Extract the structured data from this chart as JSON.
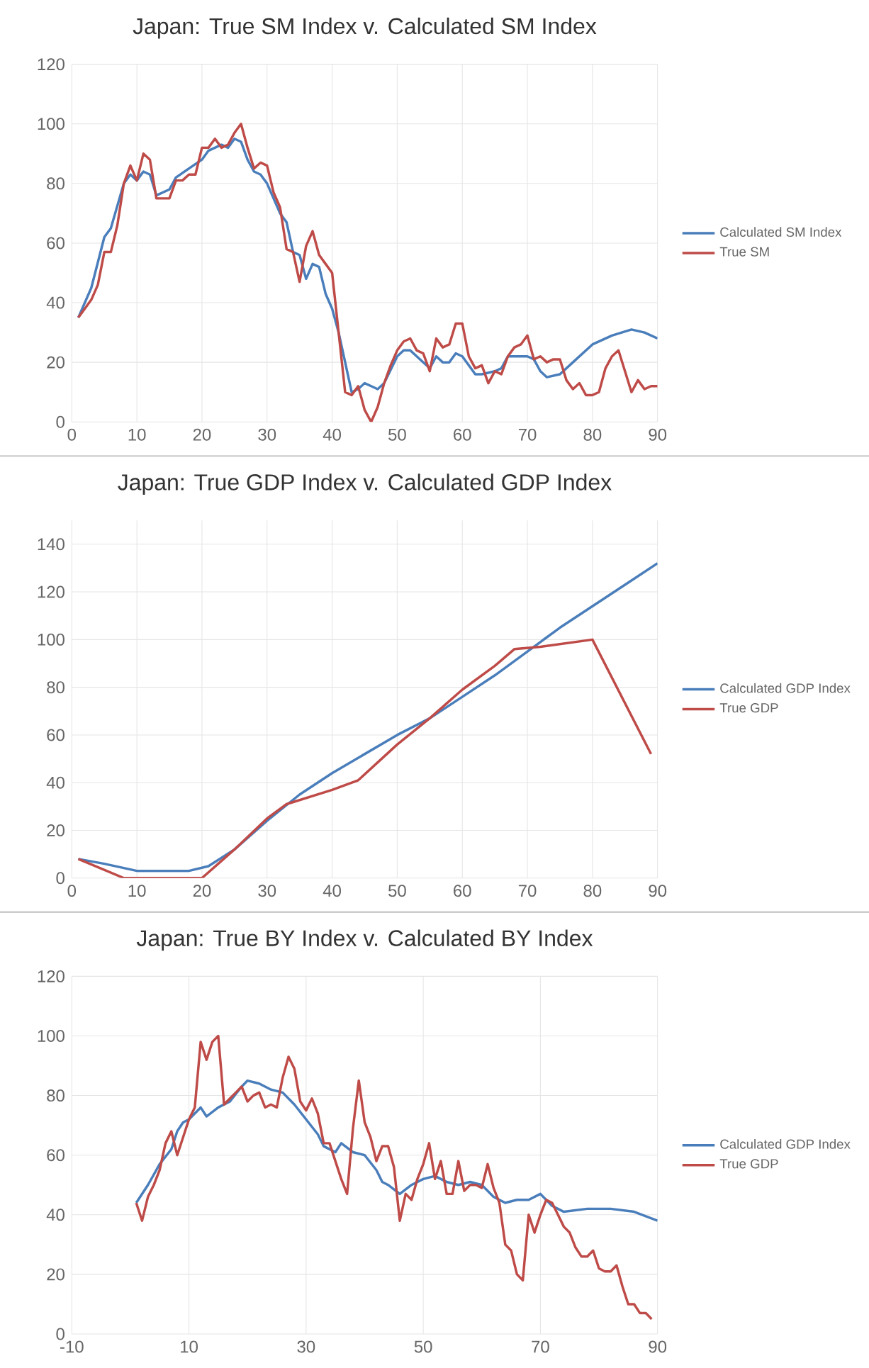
{
  "chart_data": [
    {
      "type": "line",
      "title": "Japan: True SM Index v. Calculated SM Index",
      "xlim": [
        0,
        90
      ],
      "xticks": [
        0,
        10,
        20,
        30,
        40,
        50,
        60,
        70,
        80,
        90
      ],
      "ylim": [
        0,
        120
      ],
      "yticks": [
        0,
        20,
        40,
        60,
        80,
        100,
        120
      ],
      "grid": true,
      "legend": "right",
      "marker": "none",
      "line_style": "solid",
      "series": [
        {
          "name": "Calculated SM Index",
          "color": "#4a7ebb",
          "x": [
            1,
            3,
            5,
            6,
            8,
            9,
            10,
            11,
            12,
            13,
            15,
            16,
            18,
            20,
            21,
            23,
            24,
            25,
            26,
            27,
            28,
            29,
            30,
            32,
            33,
            34,
            35,
            36,
            37,
            38,
            39,
            40,
            41,
            42,
            43,
            44,
            45,
            46,
            47,
            48,
            50,
            51,
            52,
            53,
            55,
            56,
            57,
            58,
            59,
            60,
            62,
            63,
            65,
            66,
            67,
            68,
            70,
            71,
            72,
            73,
            75,
            77,
            80,
            83,
            86,
            88,
            90
          ],
          "values": [
            35,
            45,
            62,
            65,
            80,
            83,
            81,
            84,
            83,
            76,
            78,
            82,
            85,
            88,
            91,
            93,
            92,
            95,
            94,
            88,
            84,
            83,
            80,
            70,
            67,
            57,
            56,
            48,
            53,
            52,
            43,
            38,
            30,
            20,
            10,
            11,
            13,
            12,
            11,
            13,
            22,
            24,
            24,
            22,
            18,
            22,
            20,
            20,
            23,
            22,
            16,
            16,
            17,
            18,
            22,
            22,
            22,
            21,
            17,
            15,
            16,
            20,
            26,
            29,
            31,
            30,
            28
          ]
        },
        {
          "name": "True SM",
          "color": "#be4b48",
          "x": [
            1,
            2,
            3,
            4,
            5,
            6,
            7,
            8,
            9,
            10,
            11,
            12,
            13,
            14,
            15,
            16,
            17,
            18,
            19,
            20,
            21,
            22,
            23,
            24,
            25,
            26,
            27,
            28,
            29,
            30,
            31,
            32,
            33,
            34,
            35,
            36,
            37,
            38,
            39,
            40,
            41,
            42,
            43,
            44,
            45,
            46,
            47,
            48,
            49,
            50,
            51,
            52,
            53,
            54,
            55,
            56,
            57,
            58,
            59,
            60,
            61,
            62,
            63,
            64,
            65,
            66,
            67,
            68,
            69,
            70,
            71,
            72,
            73,
            74,
            75,
            76,
            77,
            78,
            79,
            80,
            81,
            82,
            83,
            84,
            85,
            86,
            87,
            88,
            89,
            90
          ],
          "values": [
            35,
            38,
            41,
            46,
            57,
            57,
            66,
            80,
            86,
            81,
            90,
            88,
            75,
            75,
            75,
            81,
            81,
            83,
            83,
            92,
            92,
            95,
            92,
            93,
            97,
            100,
            92,
            85,
            87,
            86,
            77,
            72,
            58,
            57,
            47,
            59,
            64,
            56,
            53,
            50,
            30,
            10,
            9,
            12,
            4,
            0,
            5,
            13,
            19,
            24,
            27,
            28,
            24,
            23,
            17,
            28,
            25,
            26,
            33,
            33,
            22,
            18,
            19,
            13,
            17,
            16,
            22,
            25,
            26,
            29,
            21,
            22,
            20,
            21,
            21,
            14,
            11,
            13,
            9,
            9,
            10,
            18,
            22,
            24,
            17,
            10,
            14,
            11,
            12,
            12
          ]
        }
      ]
    },
    {
      "type": "line",
      "title": "Japan: True GDP Index v. Calculated GDP Index",
      "xlim": [
        0,
        90
      ],
      "xticks": [
        0,
        10,
        20,
        30,
        40,
        50,
        60,
        70,
        80,
        90
      ],
      "ylim": [
        0,
        150
      ],
      "yticks": [
        0,
        20,
        40,
        60,
        80,
        100,
        120,
        140
      ],
      "grid": true,
      "legend": "right",
      "marker": "none",
      "line_style": "solid",
      "series": [
        {
          "name": "Calculated GDP Index",
          "color": "#4a7ebb",
          "x": [
            1,
            5,
            10,
            18,
            21,
            25,
            30,
            35,
            40,
            45,
            50,
            55,
            60,
            65,
            70,
            75,
            80,
            85,
            90
          ],
          "values": [
            8,
            6,
            3,
            3,
            5,
            12,
            24,
            35,
            44,
            52,
            60,
            67,
            76,
            85,
            95,
            105,
            114,
            123,
            132
          ]
        },
        {
          "name": "True GDP",
          "color": "#be4b48",
          "x": [
            1,
            8,
            20,
            25,
            30,
            33,
            40,
            44,
            50,
            55,
            60,
            65,
            68,
            72,
            80,
            89
          ],
          "values": [
            8,
            0,
            0,
            12,
            25,
            31,
            37,
            41,
            56,
            67,
            79,
            89,
            96,
            97,
            100,
            52
          ]
        }
      ]
    },
    {
      "type": "line",
      "title": "Japan: True BY Index v. Calculated BY Index",
      "xlim": [
        -10,
        90
      ],
      "xticks": [
        -10,
        10,
        30,
        50,
        70,
        90
      ],
      "ylim": [
        0,
        120
      ],
      "yticks": [
        0,
        20,
        40,
        60,
        80,
        100,
        120
      ],
      "grid": true,
      "legend": "right",
      "marker": "none",
      "line_style": "solid",
      "series": [
        {
          "name": "Calculated GDP Index",
          "color": "#4a7ebb",
          "x": [
            1,
            3,
            5,
            7,
            8,
            9,
            10,
            12,
            13,
            15,
            17,
            19,
            20,
            22,
            24,
            26,
            28,
            30,
            32,
            33,
            35,
            36,
            38,
            40,
            42,
            43,
            44,
            46,
            48,
            50,
            52,
            54,
            56,
            58,
            60,
            62,
            64,
            66,
            68,
            70,
            72,
            74,
            78,
            82,
            86,
            90
          ],
          "values": [
            44,
            50,
            57,
            62,
            68,
            71,
            72,
            76,
            73,
            76,
            78,
            83,
            85,
            84,
            82,
            81,
            77,
            72,
            67,
            63,
            61,
            64,
            61,
            60,
            55,
            51,
            50,
            47,
            50,
            52,
            53,
            51,
            50,
            51,
            50,
            46,
            44,
            45,
            45,
            47,
            43,
            41,
            42,
            42,
            41,
            38
          ]
        },
        {
          "name": "True GDP",
          "color": "#be4b48",
          "x": [
            1,
            2,
            3,
            4,
            5,
            6,
            7,
            8,
            9,
            10,
            11,
            12,
            13,
            14,
            15,
            16,
            17,
            18,
            19,
            20,
            21,
            22,
            23,
            24,
            25,
            26,
            27,
            28,
            29,
            30,
            31,
            32,
            33,
            34,
            35,
            36,
            37,
            38,
            39,
            40,
            41,
            42,
            43,
            44,
            45,
            46,
            47,
            48,
            49,
            50,
            51,
            52,
            53,
            54,
            55,
            56,
            57,
            58,
            59,
            60,
            61,
            62,
            63,
            64,
            65,
            66,
            67,
            68,
            69,
            70,
            71,
            72,
            73,
            74,
            75,
            76,
            77,
            78,
            79,
            80,
            81,
            82,
            83,
            84,
            85,
            86,
            87,
            88,
            89
          ],
          "values": [
            44,
            38,
            46,
            50,
            55,
            64,
            68,
            60,
            66,
            72,
            76,
            98,
            92,
            98,
            100,
            77,
            79,
            81,
            83,
            78,
            80,
            81,
            76,
            77,
            76,
            86,
            93,
            89,
            78,
            75,
            79,
            74,
            64,
            64,
            58,
            52,
            47,
            69,
            85,
            71,
            66,
            58,
            63,
            63,
            56,
            38,
            47,
            45,
            52,
            57,
            64,
            52,
            58,
            47,
            47,
            58,
            48,
            50,
            50,
            49,
            57,
            49,
            44,
            30,
            28,
            20,
            18,
            40,
            34,
            40,
            45,
            44,
            40,
            36,
            34,
            29,
            26,
            26,
            28,
            22,
            21,
            21,
            23,
            16,
            10,
            10,
            7,
            7,
            5
          ]
        }
      ]
    }
  ]
}
